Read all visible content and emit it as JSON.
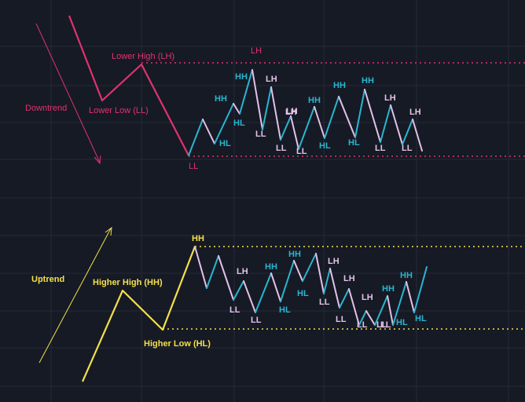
{
  "colors": {
    "background": "#161a25",
    "grid": "#252a37",
    "downtrend": "#e0336f",
    "uptrend": "#f5e04a",
    "rising_leg": "#29b6d1",
    "falling_leg": "#e3c2e8"
  },
  "downtrend": {
    "arrow_label": "Downtrend",
    "lower_high_label": "Lower High (LH)",
    "lower_low_label": "Lower Low (LL)",
    "range_top_label": "LH",
    "range_bottom_label": "LL",
    "swing_labels": [
      "HH",
      "HL",
      "HH",
      "HL",
      "LH",
      "LL",
      "LH",
      "LL",
      "LH",
      "LL",
      "HH",
      "HL",
      "HH",
      "HL",
      "HH",
      "LL",
      "LH",
      "LL",
      "LH"
    ]
  },
  "uptrend": {
    "arrow_label": "Uptrend",
    "higher_high_label": "Higher High (HH)",
    "higher_low_label": "Higher Low (HL)",
    "range_top_label": "HH",
    "swing_labels": [
      "LH",
      "LL",
      "LL",
      "HH",
      "HL",
      "HH",
      "HL",
      "LL",
      "LH",
      "LL",
      "LH",
      "LL",
      "LH",
      "LL",
      "LL",
      "HH",
      "HL",
      "HH",
      "HL"
    ]
  }
}
